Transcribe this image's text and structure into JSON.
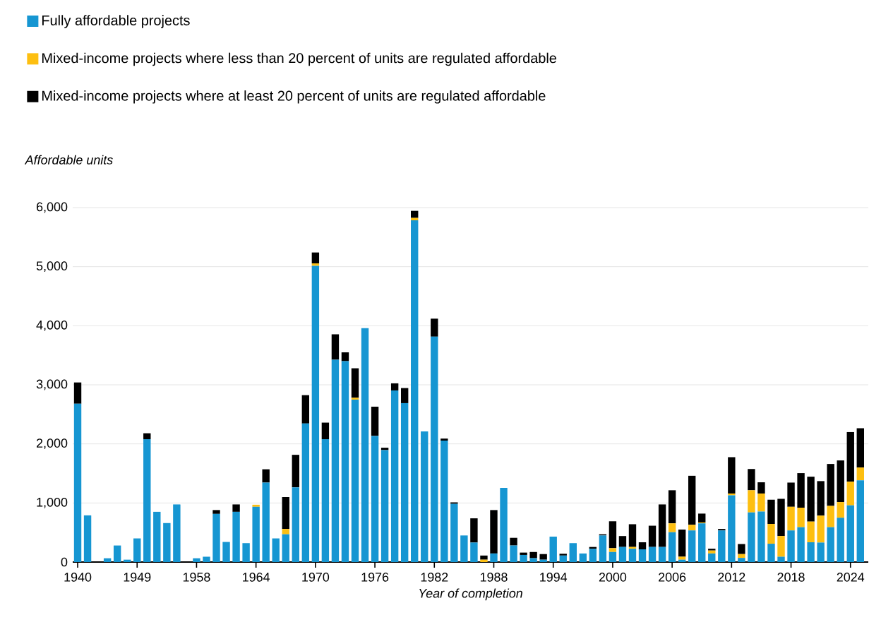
{
  "chart_data": {
    "type": "bar",
    "stacked": true,
    "xlabel": "Year of completion",
    "ylabel": "Affordable units",
    "categories": [
      "1940",
      null,
      null,
      null,
      null,
      null,
      "1949",
      null,
      null,
      null,
      null,
      null,
      "1958",
      null,
      null,
      null,
      null,
      null,
      "1964",
      null,
      null,
      null,
      null,
      null,
      "1970",
      null,
      null,
      null,
      null,
      null,
      "1976",
      null,
      null,
      null,
      null,
      null,
      "1982",
      null,
      null,
      null,
      null,
      null,
      "1988",
      null,
      null,
      null,
      null,
      null,
      "1994",
      null,
      null,
      null,
      null,
      null,
      "2000",
      null,
      null,
      null,
      null,
      null,
      "2006",
      null,
      null,
      null,
      null,
      null,
      "2012",
      null,
      null,
      null,
      null,
      null,
      "2018",
      null,
      null,
      null,
      null,
      null,
      "2024",
      null
    ],
    "series": [
      {
        "name": "Fully affordable projects",
        "color": "#1696d2",
        "values": [
          2680,
          790,
          0,
          64,
          280,
          40,
          400,
          2080,
          850,
          660,
          975,
          0,
          64,
          90,
          815,
          340,
          850,
          320,
          935,
          1345,
          400,
          470,
          1265,
          2345,
          5015,
          2080,
          3425,
          3400,
          2750,
          3960,
          2135,
          1895,
          2905,
          2690,
          5785,
          2210,
          3815,
          2055,
          985,
          450,
          330,
          0,
          145,
          1255,
          280,
          120,
          65,
          40,
          430,
          110,
          320,
          145,
          225,
          450,
          170,
          255,
          225,
          215,
          255,
          255,
          505,
          40,
          535,
          655,
          145,
          535,
          1130,
          70,
          840,
          855,
          310,
          90,
          535,
          590,
          335,
          330,
          590,
          750,
          960,
          1385
        ]
      },
      {
        "name": "Mixed-income projects where less than 20 percent of units are regulated affordable",
        "color": "#fdbf11",
        "values": [
          0,
          0,
          0,
          0,
          0,
          0,
          0,
          0,
          0,
          0,
          0,
          0,
          0,
          0,
          0,
          0,
          0,
          0,
          35,
          0,
          0,
          90,
          0,
          0,
          40,
          0,
          0,
          0,
          30,
          0,
          0,
          0,
          0,
          0,
          40,
          0,
          0,
          0,
          0,
          0,
          0,
          40,
          0,
          0,
          0,
          0,
          0,
          0,
          0,
          0,
          0,
          0,
          0,
          0,
          65,
          0,
          30,
          0,
          0,
          0,
          150,
          50,
          95,
          15,
          50,
          0,
          30,
          65,
          375,
          305,
          335,
          350,
          400,
          330,
          350,
          455,
          360,
          265,
          400,
          215
        ]
      },
      {
        "name": "Mixed-income projects where at least 20 percent of units are regulated affordable",
        "color": "#000000",
        "values": [
          360,
          0,
          0,
          0,
          0,
          0,
          0,
          100,
          0,
          0,
          0,
          0,
          0,
          0,
          65,
          0,
          125,
          0,
          0,
          225,
          0,
          540,
          550,
          480,
          185,
          280,
          430,
          150,
          500,
          0,
          495,
          40,
          120,
          255,
          120,
          0,
          305,
          35,
          25,
          0,
          410,
          70,
          735,
          0,
          130,
          40,
          105,
          95,
          0,
          30,
          0,
          0,
          30,
          20,
          455,
          185,
          385,
          120,
          360,
          720,
          560,
          460,
          830,
          150,
          30,
          25,
          615,
          170,
          360,
          190,
          410,
          630,
          410,
          585,
          760,
          585,
          710,
          705,
          840,
          665
        ]
      }
    ],
    "ylim": [
      0,
      6000
    ],
    "yticks": [
      0,
      {
        "value": 1000,
        "label": "1,000"
      },
      {
        "value": 2000,
        "label": "2,000"
      },
      {
        "value": 3000,
        "label": "3,000"
      },
      {
        "value": 4000,
        "label": "4,000"
      },
      {
        "value": 5000,
        "label": "5,000"
      },
      {
        "value": 6000,
        "label": "6,000"
      }
    ],
    "grid": "y",
    "legend": "top left"
  }
}
